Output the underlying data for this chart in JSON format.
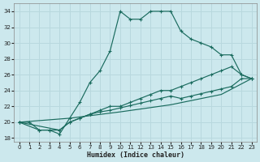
{
  "xlabel": "Humidex (Indice chaleur)",
  "xlim": [
    -0.5,
    23.5
  ],
  "ylim": [
    17.5,
    35
  ],
  "yticks": [
    18,
    20,
    22,
    24,
    26,
    28,
    30,
    32,
    34
  ],
  "xticks": [
    0,
    1,
    2,
    3,
    4,
    5,
    6,
    7,
    8,
    9,
    10,
    11,
    12,
    13,
    14,
    15,
    16,
    17,
    18,
    19,
    20,
    21,
    22,
    23
  ],
  "bg_color": "#cce8ed",
  "grid_color": "#b8d8de",
  "line_color": "#1a6b5e",
  "curves": [
    {
      "x": [
        0,
        1,
        2,
        3,
        4,
        5,
        6,
        7,
        8,
        9,
        10,
        11,
        12,
        13,
        14,
        15,
        16,
        17,
        18,
        19,
        20,
        21,
        22,
        23
      ],
      "y": [
        20,
        20,
        19,
        19,
        18.5,
        20.5,
        22.5,
        25,
        26.5,
        29,
        34,
        33,
        33,
        34,
        34,
        34,
        31.5,
        30.5,
        30,
        29.5,
        28.5,
        28.5,
        26,
        25.5
      ]
    },
    {
      "x": [
        0,
        2,
        3,
        4,
        5,
        6,
        7,
        8,
        9,
        10,
        11,
        12,
        13,
        14,
        15,
        16,
        17,
        18,
        19,
        20,
        21,
        22,
        23
      ],
      "y": [
        20,
        19,
        19,
        19,
        20,
        20.5,
        21,
        21.5,
        22,
        22,
        22.5,
        23,
        23.5,
        24,
        24,
        24.5,
        25,
        25.5,
        26,
        26.5,
        27,
        26,
        25.5
      ]
    },
    {
      "x": [
        0,
        4,
        5,
        6,
        7,
        8,
        9,
        10,
        11,
        12,
        13,
        14,
        15,
        16,
        17,
        18,
        19,
        20,
        21,
        22,
        23
      ],
      "y": [
        20,
        19,
        20,
        20.5,
        21,
        21.3,
        21.5,
        21.8,
        22.1,
        22.4,
        22.7,
        23,
        23.3,
        23,
        23.3,
        23.6,
        23.9,
        24.2,
        24.5,
        25.5,
        25.5
      ]
    },
    {
      "x": [
        0,
        5,
        10,
        15,
        20,
        23
      ],
      "y": [
        20,
        20.5,
        21.3,
        22.2,
        23.5,
        25.5
      ]
    }
  ]
}
